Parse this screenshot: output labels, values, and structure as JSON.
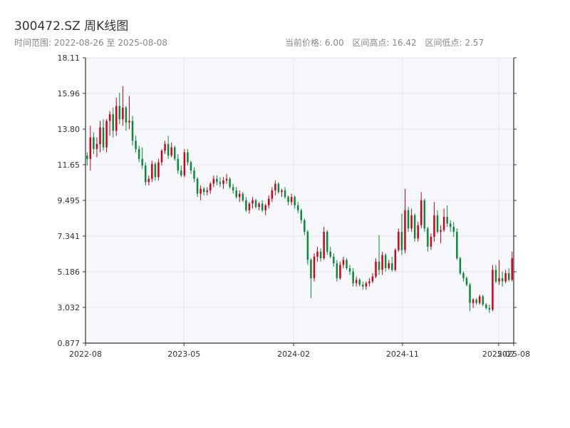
{
  "header": {
    "title": "300472.SZ 周K线图",
    "range_label": "时间范围:",
    "range_start": "2022-08-26",
    "range_sep": "至",
    "range_end": "2025-08-08",
    "stats": {
      "current_label": "当前价格:",
      "current_value": "6.00",
      "high_label": "区间高点:",
      "high_value": "16.42",
      "low_label": "区间低点:",
      "low_value": "2.57"
    }
  },
  "colors": {
    "up": "#d0021b",
    "down": "#0a8a3a",
    "plot_bg": "#f5f7fa",
    "grid": "#e4e7ec",
    "axis": "#333333"
  },
  "chart_data": {
    "type": "candlestick",
    "title": "300472.SZ 周K线图",
    "ylim": [
      0.877,
      18.11
    ],
    "y_ticks": [
      "0.877",
      "3.032",
      "5.186",
      "7.341",
      "9.495",
      "11.65",
      "13.80",
      "15.96",
      "18.11"
    ],
    "x_ticks": [
      "2022-08",
      "2023-05",
      "2024-02",
      "2024-11",
      "2025-07",
      "2025-08"
    ],
    "x_tick_dates": [
      "2022-08-26",
      "2023-05-01",
      "2024-02-01",
      "2024-11-01",
      "2025-07-01",
      "2025-08-08"
    ],
    "date_range": [
      "2022-08-26",
      "2025-08-08"
    ],
    "grid": true,
    "weekly_ohlc_approx": [
      [
        12.2,
        12.4,
        11.6,
        12.0
      ],
      [
        12.0,
        14.0,
        11.3,
        13.3
      ],
      [
        13.3,
        13.6,
        12.3,
        12.6
      ],
      [
        12.6,
        13.3,
        12.1,
        12.9
      ],
      [
        12.9,
        14.3,
        12.4,
        13.9
      ],
      [
        13.9,
        14.4,
        12.5,
        12.7
      ],
      [
        12.7,
        14.4,
        12.4,
        14.3
      ],
      [
        14.3,
        14.9,
        13.4,
        14.7
      ],
      [
        14.7,
        15.1,
        13.3,
        13.7
      ],
      [
        13.7,
        15.7,
        13.4,
        15.2
      ],
      [
        15.2,
        16.0,
        14.1,
        14.4
      ],
      [
        14.4,
        16.4,
        14.0,
        15.1
      ],
      [
        15.1,
        15.2,
        13.7,
        14.2
      ],
      [
        14.2,
        15.8,
        13.8,
        14.3
      ],
      [
        14.3,
        14.6,
        12.8,
        13.1
      ],
      [
        13.1,
        13.4,
        12.4,
        12.6
      ],
      [
        12.6,
        12.8,
        11.8,
        12.0
      ],
      [
        12.0,
        12.7,
        11.4,
        11.6
      ],
      [
        11.6,
        11.8,
        10.4,
        10.6
      ],
      [
        10.6,
        11.0,
        10.4,
        10.8
      ],
      [
        10.8,
        11.9,
        10.6,
        11.7
      ],
      [
        11.7,
        11.8,
        10.7,
        10.9
      ],
      [
        10.9,
        12.0,
        10.7,
        11.8
      ],
      [
        11.8,
        12.6,
        11.6,
        12.5
      ],
      [
        12.5,
        13.1,
        12.3,
        12.9
      ],
      [
        12.9,
        13.4,
        12.0,
        12.2
      ],
      [
        12.2,
        13.0,
        12.1,
        12.7
      ],
      [
        12.7,
        12.8,
        11.9,
        12.0
      ],
      [
        12.0,
        12.3,
        11.1,
        11.3
      ],
      [
        11.3,
        11.6,
        10.9,
        11.0
      ],
      [
        11.0,
        12.6,
        10.9,
        12.4
      ],
      [
        12.4,
        12.6,
        11.6,
        11.8
      ],
      [
        11.8,
        11.9,
        11.1,
        11.3
      ],
      [
        11.3,
        11.5,
        10.6,
        10.8
      ],
      [
        10.8,
        10.9,
        9.7,
        9.9
      ],
      [
        9.9,
        10.4,
        9.5,
        10.2
      ],
      [
        10.2,
        10.3,
        9.8,
        10.0
      ],
      [
        10.0,
        10.3,
        9.8,
        10.1
      ],
      [
        10.1,
        10.6,
        9.9,
        10.5
      ],
      [
        10.5,
        11.0,
        10.3,
        10.8
      ],
      [
        10.8,
        11.0,
        10.4,
        10.6
      ],
      [
        10.6,
        10.9,
        10.3,
        10.5
      ],
      [
        10.5,
        10.9,
        10.2,
        10.7
      ],
      [
        10.7,
        11.1,
        10.5,
        10.8
      ],
      [
        10.8,
        10.9,
        10.2,
        10.3
      ],
      [
        10.3,
        10.5,
        9.9,
        10.1
      ],
      [
        10.1,
        10.3,
        9.6,
        9.7
      ],
      [
        9.7,
        10.1,
        9.4,
        9.9
      ],
      [
        9.9,
        10.0,
        9.4,
        9.5
      ],
      [
        9.5,
        9.7,
        8.8,
        8.9
      ],
      [
        8.9,
        9.4,
        8.7,
        9.3
      ],
      [
        9.3,
        9.7,
        9.0,
        9.5
      ],
      [
        9.5,
        9.6,
        9.0,
        9.1
      ],
      [
        9.1,
        9.4,
        8.9,
        9.3
      ],
      [
        9.3,
        9.5,
        8.8,
        8.9
      ],
      [
        8.9,
        9.3,
        8.6,
        9.2
      ],
      [
        9.2,
        9.8,
        9.0,
        9.6
      ],
      [
        9.6,
        10.3,
        9.4,
        10.1
      ],
      [
        10.1,
        10.7,
        9.8,
        10.5
      ],
      [
        10.5,
        10.6,
        9.9,
        10.0
      ],
      [
        10.0,
        10.2,
        9.7,
        10.1
      ],
      [
        10.1,
        10.3,
        9.6,
        9.7
      ],
      [
        9.7,
        9.8,
        9.2,
        9.4
      ],
      [
        9.4,
        9.9,
        9.2,
        9.7
      ],
      [
        9.7,
        9.8,
        9.0,
        9.2
      ],
      [
        9.2,
        9.4,
        8.7,
        8.9
      ],
      [
        8.9,
        9.0,
        8.1,
        8.3
      ],
      [
        8.3,
        8.4,
        7.4,
        7.6
      ],
      [
        7.6,
        7.7,
        5.6,
        5.9
      ],
      [
        5.9,
        6.0,
        3.6,
        4.8
      ],
      [
        4.8,
        6.3,
        4.6,
        6.1
      ],
      [
        6.1,
        6.7,
        5.8,
        6.4
      ],
      [
        6.4,
        6.6,
        5.8,
        6.0
      ],
      [
        6.0,
        7.9,
        5.9,
        7.6
      ],
      [
        7.6,
        7.7,
        6.2,
        6.4
      ],
      [
        6.4,
        6.7,
        6.0,
        6.1
      ],
      [
        6.1,
        6.3,
        5.5,
        5.7
      ],
      [
        5.7,
        5.9,
        4.6,
        4.8
      ],
      [
        4.8,
        5.8,
        4.7,
        5.6
      ],
      [
        5.6,
        6.1,
        5.4,
        5.9
      ],
      [
        5.9,
        6.0,
        5.3,
        5.4
      ],
      [
        5.4,
        5.6,
        5.0,
        5.2
      ],
      [
        5.2,
        5.4,
        4.3,
        4.5
      ],
      [
        4.5,
        4.9,
        4.3,
        4.7
      ],
      [
        4.7,
        4.8,
        4.3,
        4.4
      ],
      [
        4.4,
        4.6,
        4.1,
        4.3
      ],
      [
        4.3,
        4.6,
        4.1,
        4.5
      ],
      [
        4.5,
        4.8,
        4.3,
        4.6
      ],
      [
        4.6,
        5.1,
        4.5,
        4.9
      ],
      [
        4.9,
        6.0,
        4.8,
        5.8
      ],
      [
        5.8,
        7.4,
        5.0,
        5.3
      ],
      [
        5.3,
        6.4,
        5.0,
        6.2
      ],
      [
        6.2,
        6.3,
        5.2,
        5.4
      ],
      [
        5.4,
        5.9,
        5.3,
        5.7
      ],
      [
        5.7,
        6.1,
        5.2,
        5.3
      ],
      [
        5.3,
        6.6,
        5.2,
        6.5
      ],
      [
        6.5,
        7.8,
        6.4,
        7.6
      ],
      [
        7.6,
        8.7,
        6.2,
        6.5
      ],
      [
        6.5,
        10.2,
        6.3,
        8.9
      ],
      [
        8.9,
        9.1,
        7.6,
        7.8
      ],
      [
        7.8,
        9.0,
        7.6,
        8.6
      ],
      [
        8.6,
        8.7,
        7.0,
        7.2
      ],
      [
        7.2,
        8.2,
        7.0,
        8.0
      ],
      [
        8.0,
        10.0,
        7.8,
        9.5
      ],
      [
        9.5,
        9.6,
        7.6,
        7.8
      ],
      [
        7.8,
        7.9,
        6.4,
        6.7
      ],
      [
        6.7,
        7.5,
        6.5,
        7.3
      ],
      [
        7.3,
        9.4,
        7.0,
        8.6
      ],
      [
        8.6,
        8.9,
        7.5,
        7.6
      ],
      [
        7.6,
        8.0,
        6.9,
        7.7
      ],
      [
        7.7,
        9.0,
        7.6,
        8.5
      ],
      [
        8.5,
        9.2,
        7.9,
        8.1
      ],
      [
        8.1,
        8.3,
        7.6,
        7.9
      ],
      [
        7.9,
        8.2,
        7.3,
        7.6
      ],
      [
        7.6,
        7.8,
        5.9,
        6.0
      ],
      [
        6.0,
        6.1,
        5.0,
        5.1
      ],
      [
        5.1,
        5.2,
        4.6,
        4.8
      ],
      [
        4.8,
        4.9,
        4.3,
        4.4
      ],
      [
        4.4,
        4.5,
        2.8,
        3.3
      ],
      [
        3.3,
        3.6,
        3.0,
        3.5
      ],
      [
        3.5,
        3.6,
        3.2,
        3.3
      ],
      [
        3.3,
        3.8,
        3.2,
        3.7
      ],
      [
        3.7,
        3.8,
        3.1,
        3.2
      ],
      [
        3.2,
        3.3,
        2.9,
        3.0
      ],
      [
        3.0,
        3.2,
        2.7,
        2.9
      ],
      [
        2.9,
        5.6,
        2.8,
        5.3
      ],
      [
        5.3,
        5.6,
        4.5,
        4.6
      ],
      [
        4.6,
        5.9,
        4.4,
        4.8
      ],
      [
        4.8,
        5.2,
        4.3,
        4.6
      ],
      [
        4.6,
        5.3,
        4.5,
        5.1
      ],
      [
        5.1,
        5.4,
        4.6,
        4.7
      ],
      [
        4.7,
        6.4,
        4.6,
        6.0
      ]
    ]
  }
}
